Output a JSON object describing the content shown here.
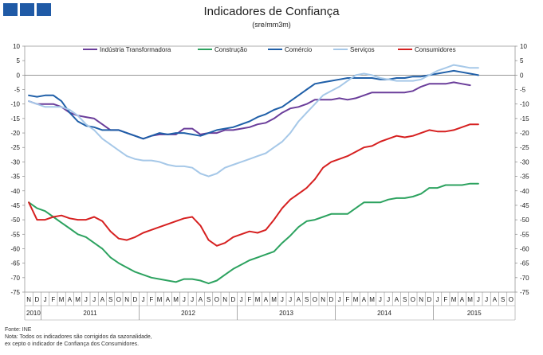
{
  "header": {
    "logo_colors": [
      "#1f5aa6",
      "#1f5aa6",
      "#1f5aa6"
    ],
    "title": "Indicadores de Confiança",
    "subtitle": "(sre/mm3m)"
  },
  "notes": {
    "source": "Fonte: INE",
    "note_line1": "Nota: Todos os indicadores são corrigidos da sazonalidade,",
    "note_line2": "ex cepto o indicador de Confiança dos Consumidores."
  },
  "chart_data": {
    "type": "line",
    "title": "Indicadores de Confiança",
    "subtitle": "(sre/mm3m)",
    "ylim": [
      -75,
      10
    ],
    "yticks": [
      10,
      5,
      0,
      -5,
      -10,
      -15,
      -20,
      -25,
      -30,
      -35,
      -40,
      -45,
      -50,
      -55,
      -60,
      -65,
      -70,
      -75
    ],
    "month_letters": [
      "N",
      "D",
      "J",
      "F",
      "M",
      "A",
      "M",
      "J",
      "J",
      "A",
      "S",
      "O",
      "N",
      "D",
      "J",
      "F",
      "M",
      "A",
      "M",
      "J",
      "J",
      "A",
      "S",
      "O",
      "N",
      "D",
      "J",
      "F",
      "M",
      "A",
      "M",
      "J",
      "J",
      "A",
      "S",
      "O",
      "N",
      "D",
      "J",
      "F",
      "M",
      "A",
      "M",
      "J",
      "J",
      "A",
      "S",
      "O",
      "N",
      "D",
      "J",
      "F",
      "M",
      "A",
      "M",
      "J",
      "J",
      "A",
      "S",
      "O"
    ],
    "years": [
      {
        "label": "2010",
        "start": 0,
        "end": 2
      },
      {
        "label": "2011",
        "start": 2,
        "end": 14
      },
      {
        "label": "2012",
        "start": 14,
        "end": 26
      },
      {
        "label": "2013",
        "start": 26,
        "end": 38
      },
      {
        "label": "2014",
        "start": 38,
        "end": 50
      },
      {
        "label": "2015",
        "start": 50,
        "end": 60
      }
    ],
    "legend_position": "top",
    "series": [
      {
        "name": "Indústria Transformadora",
        "color": "#6a3d9a",
        "values": [
          -9,
          -10,
          -10,
          -10,
          -11,
          -13,
          -14,
          -14.5,
          -15,
          -17,
          -19,
          -19,
          -20,
          -21,
          -22,
          -21,
          -20.5,
          -20.5,
          -20.5,
          -18.5,
          -18.5,
          -20.5,
          -20,
          -20,
          -19,
          -19,
          -18.5,
          -18,
          -17,
          -16.5,
          -15,
          -13,
          -11.5,
          -11,
          -10,
          -8.5,
          -8.5,
          -8.5,
          -8,
          -8.5,
          -8,
          -7,
          -6,
          -6,
          -6,
          -6,
          -6,
          -5.5,
          -4,
          -3,
          -3,
          -3,
          -2.5,
          -3,
          -3.5
        ]
      },
      {
        "name": "Construção",
        "color": "#2ca25f",
        "values": [
          -44,
          -46,
          -47,
          -49,
          -51,
          -53,
          -55,
          -56,
          -58,
          -60,
          -63,
          -65,
          -66.5,
          -68,
          -69,
          -70,
          -70.5,
          -71,
          -71.5,
          -70.5,
          -70.5,
          -71,
          -72,
          -71,
          -69,
          -67,
          -65.5,
          -64,
          -63,
          -62,
          -61,
          -58,
          -55.5,
          -52.5,
          -50.5,
          -50,
          -49,
          -48,
          -48,
          -48,
          -46,
          -44,
          -44,
          -44,
          -43,
          -42.5,
          -42.5,
          -42,
          -41,
          -39,
          -39,
          -38,
          -38,
          -38,
          -37.5,
          -37.5
        ]
      },
      {
        "name": "Comércio",
        "color": "#1f5fa8",
        "values": [
          -7,
          -7.5,
          -7,
          -7,
          -9,
          -13,
          -16,
          -17.5,
          -18,
          -19,
          -19,
          -19,
          -20,
          -21,
          -22,
          -21,
          -20,
          -20.5,
          -20,
          -20,
          -20.5,
          -21,
          -20,
          -19,
          -18.5,
          -18,
          -17,
          -16,
          -14.5,
          -13.5,
          -12,
          -11,
          -9,
          -7,
          -5,
          -3,
          -2.5,
          -2,
          -1.5,
          -1,
          -1,
          -1,
          -1,
          -1.5,
          -1.5,
          -1,
          -1,
          -0.5,
          -0.5,
          0,
          0.5,
          1,
          1.5,
          1,
          0.5,
          0
        ]
      },
      {
        "name": "Serviços",
        "color": "#a6c8e8",
        "values": [
          -9,
          -10,
          -11,
          -11,
          -11,
          -12,
          -14,
          -17,
          -19,
          -22,
          -24,
          -26,
          -28,
          -29,
          -29.5,
          -29.5,
          -30,
          -31,
          -31.5,
          -31.5,
          -32,
          -34,
          -35,
          -34,
          -32,
          -31,
          -30,
          -29,
          -28,
          -27,
          -25,
          -23,
          -20,
          -16,
          -13,
          -10,
          -7,
          -5.5,
          -4,
          -2,
          0,
          0.5,
          0,
          -1,
          -1.5,
          -2,
          -2,
          -2,
          -1.5,
          0,
          1.5,
          2.5,
          3.5,
          3,
          2.5,
          2.5
        ]
      },
      {
        "name": "Consumidores",
        "color": "#d62020",
        "values": [
          -44,
          -50,
          -50,
          -49,
          -48.5,
          -49.5,
          -50,
          -50,
          -49,
          -50.5,
          -54,
          -56.5,
          -57,
          -56,
          -54.5,
          -53.5,
          -52.5,
          -51.5,
          -50.5,
          -49.5,
          -49,
          -52,
          -57,
          -59,
          -58,
          -56,
          -55,
          -54,
          -54.5,
          -53.5,
          -50,
          -46,
          -43,
          -41,
          -39,
          -36,
          -32,
          -30,
          -29,
          -28,
          -26.5,
          -25,
          -24.5,
          -23,
          -22,
          -21,
          -21.5,
          -21,
          -20,
          -19,
          -19.5,
          -19.5,
          -19,
          -18,
          -17,
          -17
        ]
      }
    ]
  }
}
